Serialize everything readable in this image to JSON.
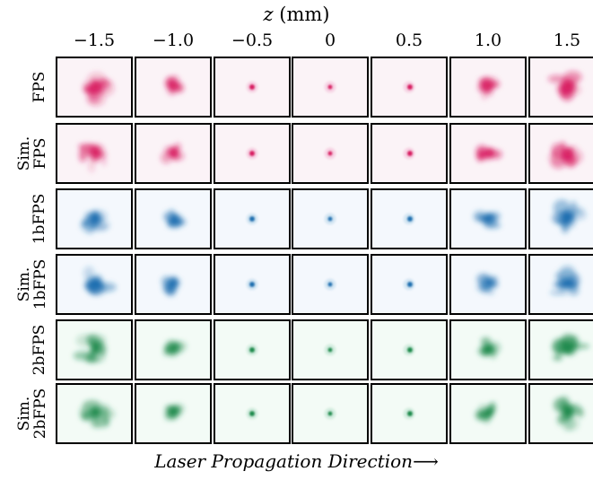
{
  "axis": {
    "var": "z",
    "unit": "(mm)"
  },
  "columns": [
    "−1.5",
    "−1.0",
    "−0.5",
    "0",
    "0.5",
    "1.0",
    "1.5"
  ],
  "rows": [
    {
      "line1": "",
      "line2": "FPS",
      "color": "#d81b60",
      "bg": "#fbf3f7"
    },
    {
      "line1": "Sim.",
      "line2": "FPS",
      "color": "#d81b60",
      "bg": "#fbf3f7"
    },
    {
      "line1": "",
      "line2": "1bFPS",
      "color": "#1f6fb0",
      "bg": "#f4f8fd"
    },
    {
      "line1": "Sim.",
      "line2": "1bFPS",
      "color": "#1f6fb0",
      "bg": "#f4f8fd"
    },
    {
      "line1": "",
      "line2": "2bFPS",
      "color": "#1e8a4c",
      "bg": "#f3fbf6"
    },
    {
      "line1": "Sim.",
      "line2": "2bFPS",
      "color": "#1e8a4c",
      "bg": "#f3fbf6"
    }
  ],
  "bottom_label": "Laser Propagation Direction⟶"
}
